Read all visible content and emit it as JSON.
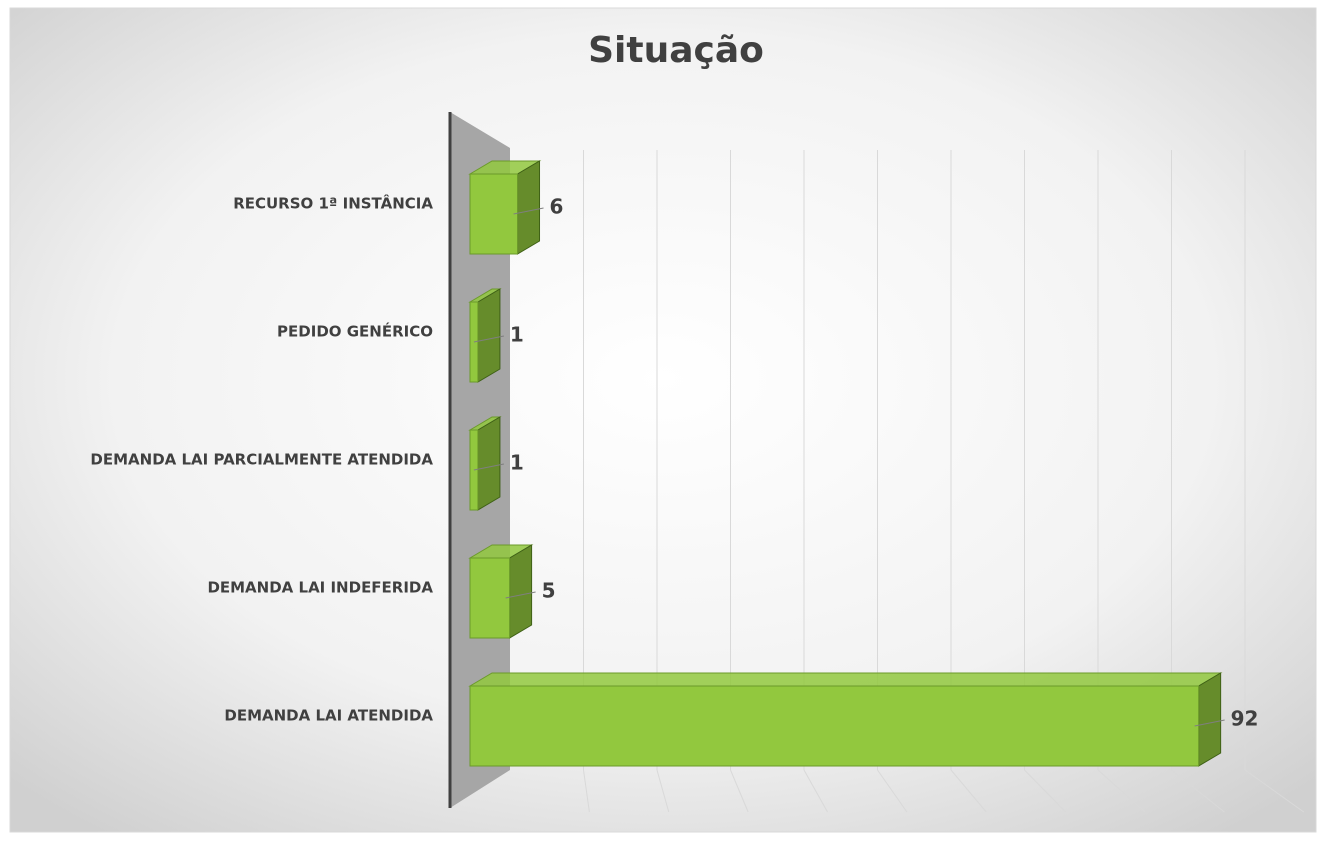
{
  "chart_data": {
    "type": "bar",
    "orientation": "horizontal",
    "title": "Situação",
    "categories": [
      "RECURSO 1ª INSTÂNCIA",
      "PEDIDO GENÉRICO",
      "DEMANDA LAI PARCIALMENTE ATENDIDA",
      "DEMANDA LAI INDEFERIDA",
      "DEMANDA LAI ATENDIDA"
    ],
    "values": [
      6,
      1,
      1,
      5,
      92
    ],
    "color": "#92c83e",
    "xlim": [
      0,
      100
    ],
    "xticks": [
      0,
      10,
      20,
      30,
      40,
      50,
      60,
      70,
      80,
      90,
      100
    ],
    "grid": true
  }
}
